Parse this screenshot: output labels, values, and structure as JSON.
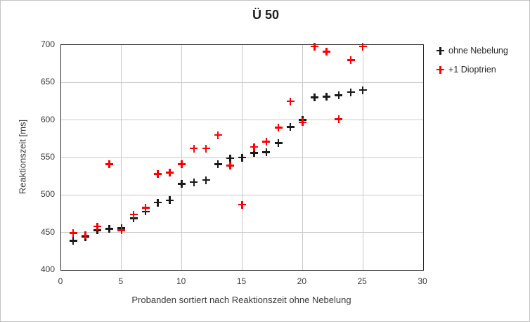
{
  "chart_data": {
    "type": "scatter",
    "title": "Ü 50",
    "xlabel": "Probanden sortiert nach Reaktionszeit ohne Nebelung",
    "ylabel": "Reaktionszeit [ms]",
    "xlim": [
      0,
      30
    ],
    "ylim": [
      400,
      700
    ],
    "x_ticks": [
      0,
      5,
      10,
      15,
      20,
      25,
      30
    ],
    "y_ticks": [
      400,
      450,
      500,
      550,
      600,
      650,
      700
    ],
    "grid": true,
    "legend_position": "right-outside",
    "marker_style": "plus",
    "x": [
      1,
      2,
      3,
      4,
      5,
      6,
      7,
      8,
      9,
      10,
      11,
      12,
      13,
      14,
      15,
      16,
      17,
      18,
      19,
      20,
      21,
      22,
      23,
      24,
      25
    ],
    "series": [
      {
        "name": "ohne Nebelung",
        "color": "#1a1a1a",
        "values": [
          439,
          444,
          453,
          455,
          456,
          469,
          478,
          490,
          493,
          515,
          517,
          520,
          541,
          549,
          550,
          556,
          557,
          569,
          591,
          600,
          630,
          631,
          633,
          637,
          640
        ]
      },
      {
        "name": "+1 Dioptrien",
        "color": "#ff0000",
        "values": [
          449,
          446,
          458,
          541,
          453,
          474,
          483,
          528,
          530,
          541,
          562,
          562,
          580,
          539,
          487,
          564,
          571,
          590,
          625,
          597,
          698,
          691,
          601,
          680,
          698
        ]
      }
    ]
  }
}
